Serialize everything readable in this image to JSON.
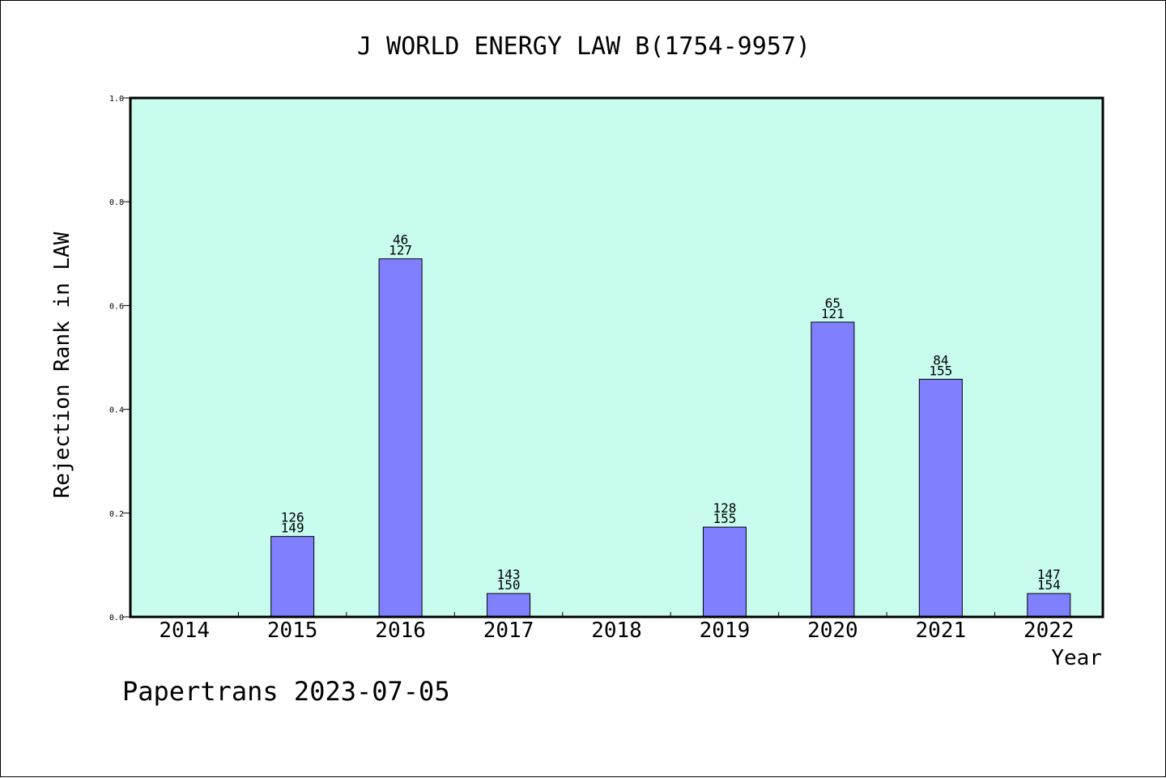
{
  "chart_data": {
    "type": "bar",
    "title": "J WORLD ENERGY LAW B(1754-9957)",
    "xlabel": "Year",
    "ylabel": "Rejection Rank in LAW",
    "ylim": [
      0,
      1.0
    ],
    "yticks": [
      "0.0",
      "0.2",
      "0.4",
      "0.6",
      "0.8",
      "1.0"
    ],
    "categories": [
      "2014",
      "2015",
      "2016",
      "2017",
      "2018",
      "2019",
      "2020",
      "2021",
      "2022"
    ],
    "values": [
      null,
      0.155,
      0.69,
      0.045,
      null,
      0.173,
      0.568,
      0.458,
      0.045
    ],
    "labels_top": [
      "",
      "126",
      "46",
      "143",
      "",
      "128",
      "65",
      "84",
      "147"
    ],
    "labels_bottom": [
      "",
      "149",
      "127",
      "150",
      "",
      "155",
      "121",
      "155",
      "154"
    ],
    "grid": false,
    "colors": {
      "plot_background": "#c8fcee",
      "bar_fill": "#8080ff",
      "bar_stroke": "#000000"
    }
  },
  "footer": "Papertrans 2023-07-05"
}
